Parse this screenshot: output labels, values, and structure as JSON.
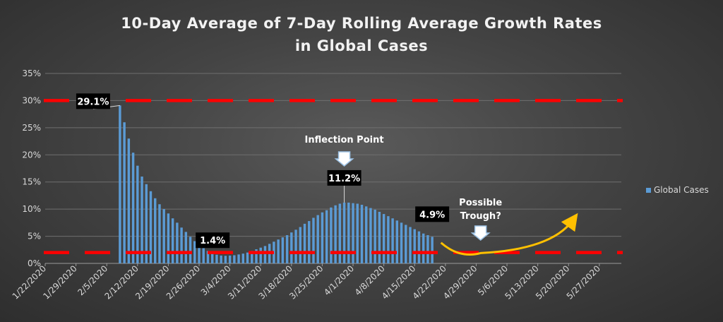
{
  "chart_data": {
    "type": "bar",
    "title": [
      "10-Day Average of 7-Day Rolling Average Growth Rates",
      "in Global Cases"
    ],
    "xlabel": "",
    "ylabel": "",
    "ylim": [
      0,
      35
    ],
    "yticks": [
      "0%",
      "5%",
      "10%",
      "15%",
      "20%",
      "25%",
      "30%",
      "35%"
    ],
    "x_tick_labels": [
      "1/22/2020",
      "1/29/2020",
      "2/5/2020",
      "2/12/2020",
      "2/19/2020",
      "2/26/2020",
      "3/4/2020",
      "3/11/2020",
      "3/18/2020",
      "3/25/2020",
      "4/1/2020",
      "4/8/2020",
      "4/15/2020",
      "4/22/2020",
      "4/29/2020",
      "5/6/2020",
      "5/13/2020",
      "5/20/2020",
      "5/27/2020"
    ],
    "grid": true,
    "legend_position": "right",
    "series": [
      {
        "name": "Global Cases",
        "color": "#5b9bd5",
        "x_start": "2/8/2020",
        "values": [
          29.1,
          26.0,
          23.0,
          20.4,
          18.0,
          16.0,
          14.6,
          13.3,
          12.0,
          10.9,
          10.0,
          9.2,
          8.3,
          7.5,
          6.6,
          5.8,
          4.9,
          4.1,
          3.4,
          2.8,
          2.3,
          1.9,
          1.6,
          1.45,
          1.4,
          1.45,
          1.5,
          1.65,
          1.8,
          2.0,
          2.3,
          2.6,
          2.9,
          3.2,
          3.6,
          4.0,
          4.4,
          4.8,
          5.2,
          5.7,
          6.2,
          6.7,
          7.3,
          7.8,
          8.4,
          8.9,
          9.4,
          9.8,
          10.3,
          10.7,
          11.0,
          11.2,
          11.2,
          11.1,
          11.0,
          10.8,
          10.5,
          10.2,
          9.9,
          9.5,
          9.1,
          8.7,
          8.3,
          7.9,
          7.5,
          7.1,
          6.7,
          6.3,
          5.9,
          5.5,
          5.2,
          4.9
        ]
      }
    ],
    "reference_lines": [
      {
        "value": 30,
        "color": "#ff0000",
        "style": "dashed"
      },
      {
        "value": 2,
        "color": "#ff0000",
        "style": "dashed"
      }
    ],
    "annotations": [
      {
        "label": "29.1%",
        "date": "2/8/2020",
        "value": 29.1
      },
      {
        "label": "1.4%",
        "date": "3/2/2020",
        "value": 1.4
      },
      {
        "label": "11.2%",
        "date": "3/30/2020",
        "value": 11.2
      },
      {
        "label": "4.9%",
        "date": "4/19/2020",
        "value": 4.9
      }
    ],
    "callouts": [
      {
        "label": "Inflection Point",
        "date": "3/30/2020",
        "value": 11.2
      },
      {
        "label": "Possible Trough?",
        "date": "4/30/2020",
        "value": 2
      }
    ],
    "trend_arrow": {
      "color": "#ffc000",
      "dates": [
        "4/21/2020",
        "4/30/2020",
        "5/21/2020"
      ],
      "values": [
        3.8,
        1.9,
        8.0
      ]
    }
  }
}
